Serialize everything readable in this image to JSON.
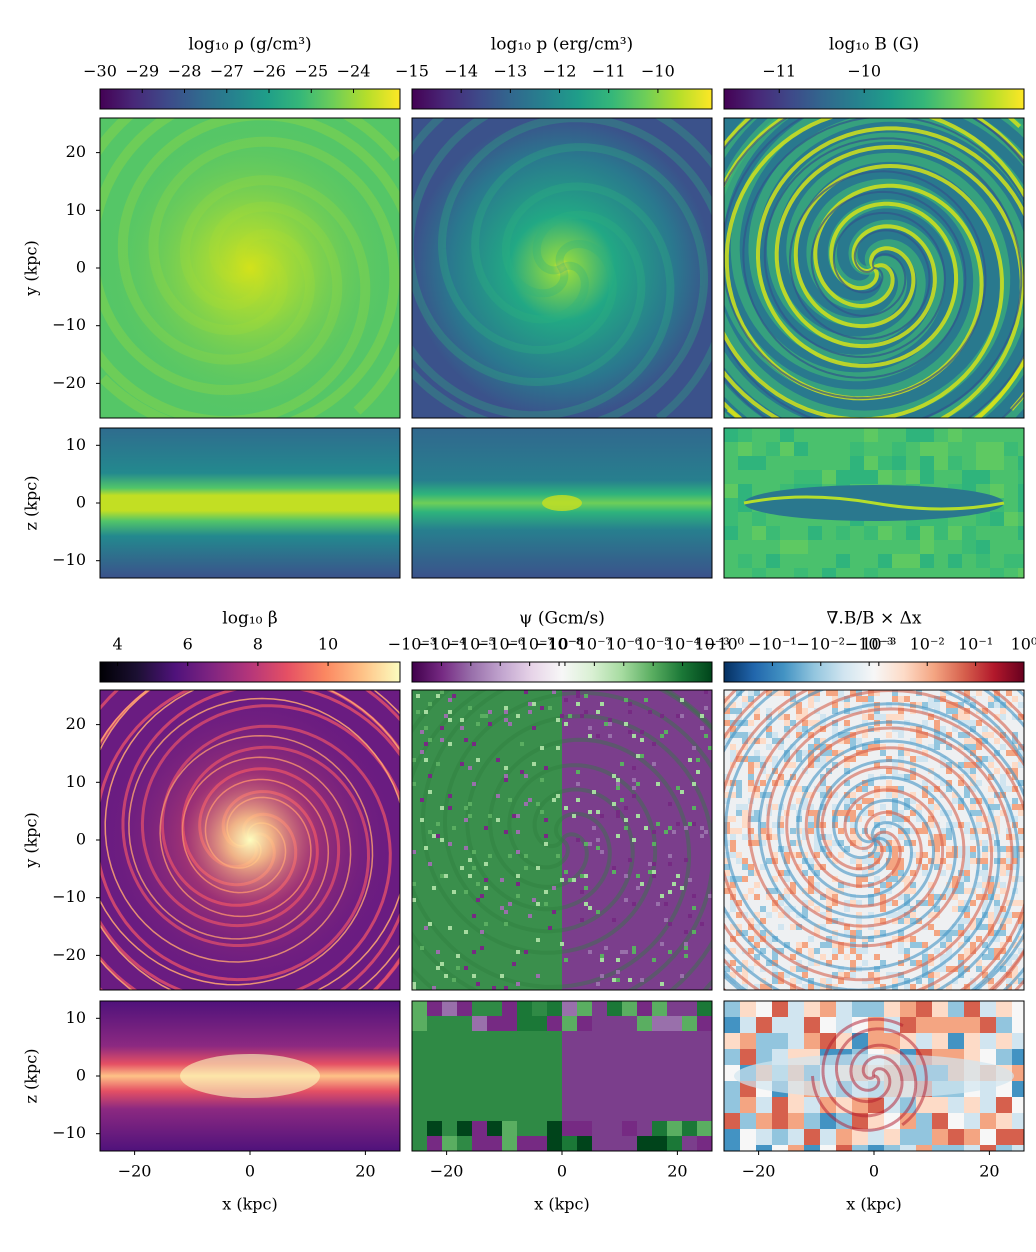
{
  "figure": {
    "colorbars": [
      {
        "title": "log₁₀ ρ (g/cm³)",
        "scale": "linear",
        "clim": [
          -30,
          -22.9
        ],
        "cmap": [
          "#440154",
          "#482878",
          "#3e4989",
          "#31688e",
          "#26828e",
          "#1f9e89",
          "#35b779",
          "#6ece58",
          "#b5de2b",
          "#fde725"
        ],
        "ticks": [
          {
            "value": -30,
            "label": "−30"
          },
          {
            "value": -29,
            "label": "−29"
          },
          {
            "value": -28,
            "label": "−28"
          },
          {
            "value": -27,
            "label": "−27"
          },
          {
            "value": -26,
            "label": "−26"
          },
          {
            "value": -25,
            "label": "−25"
          },
          {
            "value": -24,
            "label": "−24"
          }
        ]
      },
      {
        "title": "log₁₀ p (erg/cm³)",
        "scale": "linear",
        "clim": [
          -15,
          -8.9
        ],
        "cmap": [
          "#440154",
          "#482878",
          "#3e4989",
          "#31688e",
          "#26828e",
          "#1f9e89",
          "#35b779",
          "#6ece58",
          "#b5de2b",
          "#fde725"
        ],
        "ticks": [
          {
            "value": -15,
            "label": "−15"
          },
          {
            "value": -14,
            "label": "−14"
          },
          {
            "value": -13,
            "label": "−13"
          },
          {
            "value": -12,
            "label": "−12"
          },
          {
            "value": -11,
            "label": "−11"
          },
          {
            "value": -10,
            "label": "−10"
          }
        ]
      },
      {
        "title": "log₁₀ B (G)",
        "scale": "linear",
        "clim": [
          -11.65,
          -8.12
        ],
        "cmap": [
          "#440154",
          "#482878",
          "#3e4989",
          "#31688e",
          "#26828e",
          "#1f9e89",
          "#35b779",
          "#6ece58",
          "#b5de2b",
          "#fde725"
        ],
        "ticks": [
          {
            "value": -11,
            "label": "−11"
          },
          {
            "value": -10,
            "label": "−10"
          }
        ]
      },
      {
        "title": "log₁₀ β",
        "scale": "linear",
        "clim": [
          3.5,
          12.05
        ],
        "cmap": [
          "#000004",
          "#1c1033",
          "#4f127b",
          "#812581",
          "#b5367a",
          "#e55064",
          "#fb8761",
          "#fec287",
          "#fcfdbf"
        ],
        "ticks": [
          4,
          6,
          8,
          10
        ]
      },
      {
        "title": "ψ (Gcm/s)",
        "scale": "symlog",
        "linthresh": 1e-08,
        "linscale": 0.1,
        "clim": [
          -0.001,
          0.001
        ],
        "cmap": [
          "#40004b",
          "#762a83",
          "#9970ab",
          "#c2a5cf",
          "#e7d4e8",
          "#f7f7f7",
          "#d9f0d3",
          "#a6dba0",
          "#5aae61",
          "#1b7837",
          "#00441b"
        ],
        "ticks": [
          {
            "value": -0.001,
            "label": "−10⁻³"
          },
          {
            "value": -0.0001,
            "label": "−10⁻⁴"
          },
          {
            "value": -1e-05,
            "label": "−10⁻⁵"
          },
          {
            "value": -1e-06,
            "label": "−10⁻⁶"
          },
          {
            "value": -1e-07,
            "label": "−10⁻⁷"
          },
          {
            "value": -1e-08,
            "label": "−10⁻⁸"
          },
          {
            "value": 1e-08,
            "label": "10⁻⁸"
          },
          {
            "value": 1e-07,
            "label": "10⁻⁷"
          },
          {
            "value": 1e-06,
            "label": "10⁻⁶"
          },
          {
            "value": 1e-05,
            "label": "10⁻⁵"
          },
          {
            "value": 0.0001,
            "label": "10⁻⁴"
          },
          {
            "value": 0.001,
            "label": "10⁻³"
          }
        ]
      },
      {
        "title": "∇.B/B × Δx",
        "scale": "symlog",
        "linthresh": 0.001,
        "linscale": 0.1,
        "clim": [
          -1,
          1
        ],
        "cmap": [
          "#053061",
          "#2166ac",
          "#4393c3",
          "#92c5de",
          "#d1e5f0",
          "#f7f7f7",
          "#fddbc7",
          "#f4a582",
          "#d6604d",
          "#b2182b",
          "#67001f"
        ],
        "ticks": [
          {
            "value": -1,
            "label": "−10⁰"
          },
          {
            "value": -0.1,
            "label": "−10⁻¹"
          },
          {
            "value": -0.01,
            "label": "−10⁻²"
          },
          {
            "value": -0.001,
            "label": "−10⁻³"
          },
          {
            "value": 0.001,
            "label": "10⁻³"
          },
          {
            "value": 0.01,
            "label": "10⁻²"
          },
          {
            "value": 0.1,
            "label": "10⁻¹"
          },
          {
            "value": 1,
            "label": "10⁰"
          }
        ]
      }
    ],
    "xy_axis": {
      "label": "y (kpc)",
      "lim": [
        -26,
        26
      ],
      "ticks": [
        20,
        10,
        0,
        {
          "value": -10,
          "label": "−10"
        },
        {
          "value": -20,
          "label": "−20"
        }
      ]
    },
    "xz_axis": {
      "label": "z (kpc)",
      "lim": [
        -13,
        13
      ],
      "ticks": [
        10,
        0,
        {
          "value": -10,
          "label": "−10"
        }
      ]
    },
    "x_axis": {
      "label": "x (kpc)",
      "lim": [
        -26,
        26
      ],
      "ticks": [
        {
          "value": -20,
          "label": "−20"
        },
        0,
        20
      ]
    }
  }
}
